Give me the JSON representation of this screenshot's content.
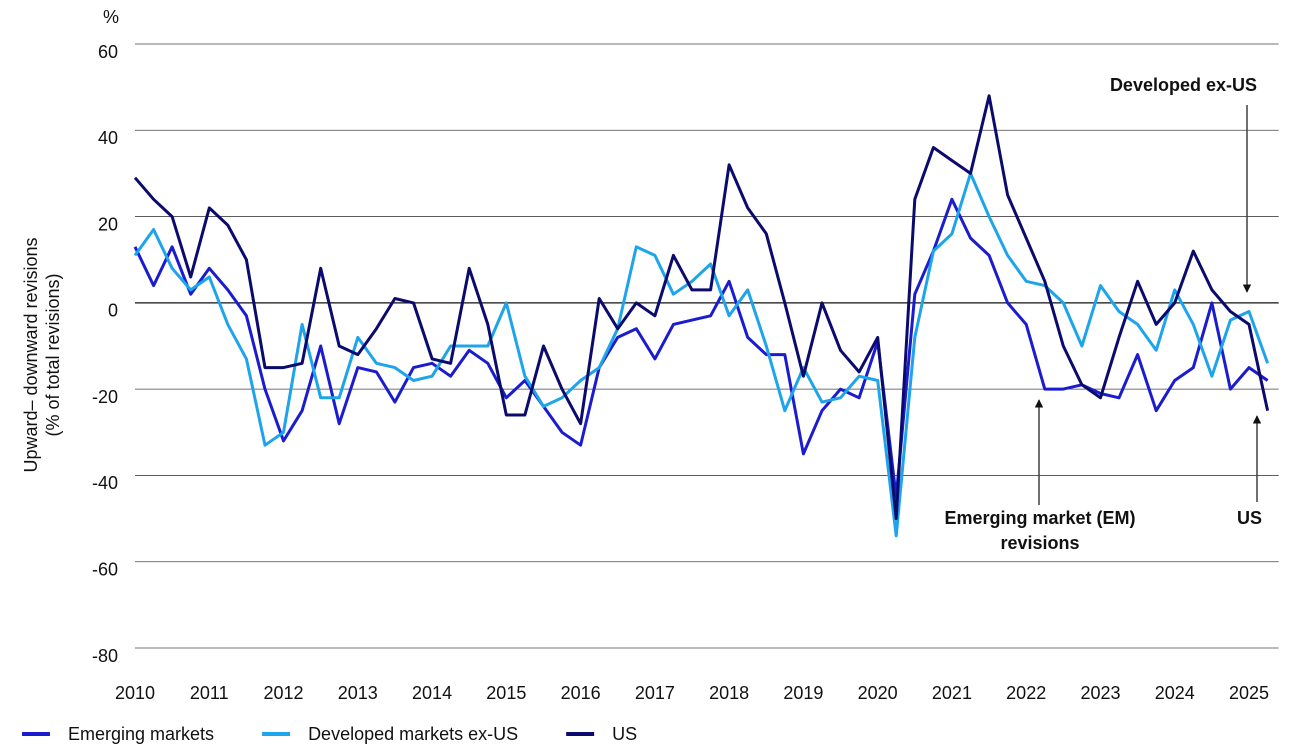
{
  "chart_data": {
    "type": "line",
    "y_unit": "%",
    "ylabel": [
      "Upward– downward revisions",
      "(% of total revisions)"
    ],
    "x": [
      2010,
      2010.25,
      2010.5,
      2010.75,
      2011,
      2011.25,
      2011.5,
      2011.75,
      2012,
      2012.25,
      2012.5,
      2012.75,
      2013,
      2013.25,
      2013.5,
      2013.75,
      2014,
      2014.25,
      2014.5,
      2014.75,
      2015,
      2015.25,
      2015.5,
      2015.75,
      2016,
      2016.25,
      2016.5,
      2016.75,
      2017,
      2017.25,
      2017.5,
      2017.75,
      2018,
      2018.25,
      2018.5,
      2018.75,
      2019,
      2019.25,
      2019.5,
      2019.75,
      2020,
      2020.25,
      2020.5,
      2020.75,
      2021,
      2021.25,
      2021.5,
      2021.75,
      2022,
      2022.25,
      2022.5,
      2022.75,
      2023,
      2023.25,
      2023.5,
      2023.75,
      2024,
      2024.25,
      2024.5,
      2024.75,
      2025,
      2025.25
    ],
    "series": [
      {
        "name": "Emerging markets",
        "color": "#1c1ccf",
        "values": [
          13,
          4,
          13,
          2,
          8,
          3,
          -3,
          -20,
          -32,
          -25,
          -10,
          -28,
          -15,
          -16,
          -23,
          -15,
          -14,
          -17,
          -11,
          -14,
          -22,
          -18,
          -24,
          -30,
          -33,
          -15,
          -8,
          -6,
          -13,
          -5,
          -4,
          -3,
          5,
          -8,
          -12,
          -12,
          -35,
          -25,
          -20,
          -22,
          -9,
          -45,
          2,
          12,
          24,
          15,
          11,
          0,
          -5,
          -20,
          -20,
          -19,
          -21,
          -22,
          -12,
          -25,
          -18,
          -15,
          0,
          -20,
          -15,
          -18
        ]
      },
      {
        "name": "Developed markets ex-US",
        "color": "#1ea4ea",
        "values": [
          11,
          17,
          8,
          3,
          6,
          -5,
          -13,
          -33,
          -30,
          -5,
          -22,
          -22,
          -8,
          -14,
          -15,
          -18,
          -17,
          -10,
          -10,
          -10,
          0,
          -17,
          -24,
          -22,
          -18,
          -15,
          -6,
          13,
          11,
          2,
          5,
          9,
          -3,
          3,
          -10,
          -25,
          -15,
          -23,
          -22,
          -17,
          -18,
          -54,
          -8,
          12,
          16,
          30,
          20,
          11,
          5,
          4,
          0,
          -10,
          4,
          -2,
          -5,
          -11,
          3,
          -5,
          -17,
          -4,
          -2,
          -14
        ]
      },
      {
        "name": "US",
        "color": "#0b0b6e",
        "values": [
          29,
          24,
          20,
          6,
          22,
          18,
          10,
          -15,
          -15,
          -14,
          8,
          -10,
          -12,
          -6,
          1,
          0,
          -13,
          -14,
          8,
          -5,
          -26,
          -26,
          -10,
          -20,
          -28,
          1,
          -6,
          0,
          -3,
          11,
          3,
          3,
          32,
          22,
          16,
          0,
          -17,
          0,
          -11,
          -16,
          -8,
          -50,
          24,
          36,
          33,
          30,
          48,
          25,
          15,
          5,
          -10,
          -19,
          -22,
          -8,
          5,
          -5,
          0,
          12,
          3,
          -2,
          -5,
          -25
        ]
      }
    ],
    "xlim": [
      2010,
      2025.4
    ],
    "xticks": [
      2010,
      2011,
      2012,
      2013,
      2014,
      2015,
      2016,
      2017,
      2018,
      2019,
      2020,
      2021,
      2022,
      2023,
      2024,
      2025
    ],
    "ylim": [
      -80,
      60
    ],
    "yticks": [
      60,
      40,
      20,
      0,
      -20,
      -40,
      -60,
      -80
    ],
    "grid": true,
    "legend": "bottom",
    "annotations": [
      {
        "lines": [
          "Developed ex-US"
        ]
      },
      {
        "lines": [
          "Emerging market (EM)",
          "revisions"
        ]
      },
      {
        "lines": [
          "US"
        ]
      }
    ]
  }
}
